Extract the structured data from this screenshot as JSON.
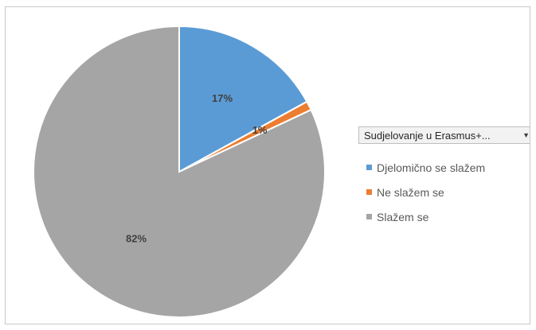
{
  "chart_data": {
    "type": "pie",
    "filter_label": "Sudjelovanje u Erasmus+...",
    "categories": [
      "Djelomično se slažem",
      "Ne slažem se",
      "Slažem se"
    ],
    "values": [
      17,
      1,
      82
    ],
    "labels": [
      "17%",
      "1%",
      "82%"
    ],
    "colors": [
      "#5b9bd5",
      "#ed7d31",
      "#a5a5a5"
    ],
    "legend_position": "right",
    "start_angle_deg": 0,
    "direction": "clockwise"
  },
  "legend": {
    "dropdown_icon": "dropdown-arrow-icon"
  }
}
